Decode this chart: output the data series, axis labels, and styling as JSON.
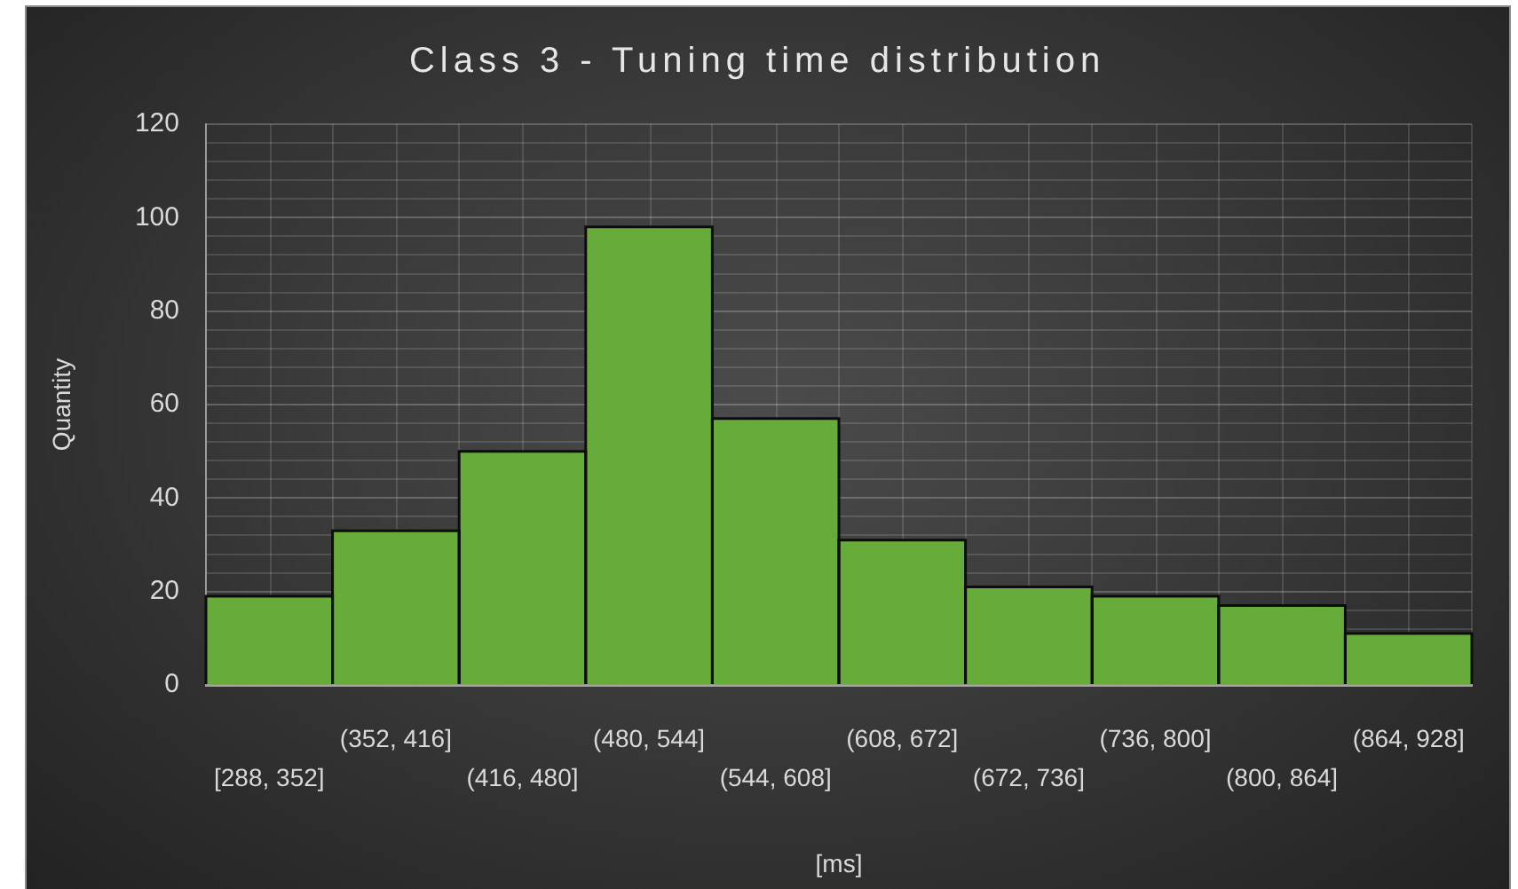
{
  "chart_data": {
    "type": "histogram",
    "title": "Class 3 - Tuning time distribution",
    "xlabel": "[ms]",
    "ylabel": "Quantity",
    "categories": [
      "[288, 352]",
      "(352, 416]",
      "(416, 480]",
      "(480, 544]",
      "(544, 608]",
      "(608, 672]",
      "(672, 736]",
      "(736, 800]",
      "(800, 864]",
      "(864, 928]"
    ],
    "values": [
      19,
      33,
      50,
      98,
      57,
      31,
      21,
      19,
      17,
      11
    ],
    "color": "#67ac3b",
    "ylim": [
      0,
      120
    ],
    "yticks": [
      0,
      {
        "value": 12,
        "label": null
      },
      {
        "value": 16,
        "label": null
      },
      20,
      {
        "value": 24,
        "label": null
      },
      {
        "value": 28,
        "label": null
      },
      {
        "value": 32,
        "label": null
      },
      {
        "value": 36,
        "label": null
      },
      40,
      {
        "value": 44,
        "label": null
      },
      {
        "value": 48,
        "label": null
      },
      {
        "value": 52,
        "label": null
      },
      {
        "value": 56,
        "label": null
      },
      60,
      {
        "value": 64,
        "label": null
      },
      {
        "value": 68,
        "label": null
      },
      {
        "value": 72,
        "label": null
      },
      {
        "value": 76,
        "label": null
      },
      80,
      {
        "value": 84,
        "label": null
      },
      {
        "value": 88,
        "label": null
      },
      {
        "value": 92,
        "label": null
      },
      {
        "value": 96,
        "label": null
      },
      100,
      {
        "value": 104,
        "label": null
      },
      {
        "value": 108,
        "label": null
      },
      {
        "value": 112,
        "label": null
      },
      {
        "value": 116,
        "label": null
      },
      120
    ],
    "grid": true
  }
}
